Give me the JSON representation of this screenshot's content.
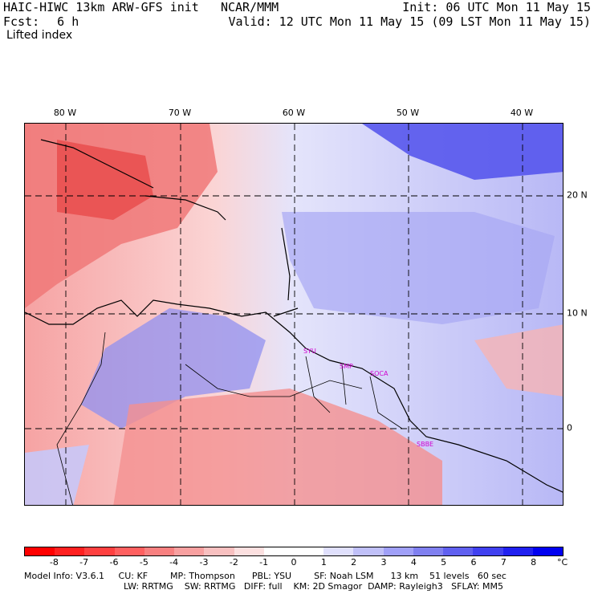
{
  "header": {
    "title": "HAIC-HIWC 13km ARW-GFS init",
    "center": "NCAR/MMM",
    "init": "Init: 06 UTC Mon 11 May 15",
    "fcst_label": "Fcst:",
    "fcst_value": "6 h",
    "valid": "Valid: 12 UTC Mon 11 May 15 (09 LST Mon 11 May 15)",
    "field": "Lifted index"
  },
  "map": {
    "lon_labels": [
      "80 W",
      "70 W",
      "60 W",
      "50 W",
      "40 W"
    ],
    "lat_labels": [
      "20 N",
      "10 N",
      "0"
    ],
    "stations": [
      "SYU",
      "SMP",
      "SOCA",
      "SBBE"
    ]
  },
  "colorbar": {
    "labels": [
      "-8",
      "-7",
      "-6",
      "-5",
      "-4",
      "-3",
      "-2",
      "-1",
      "0",
      "1",
      "2",
      "3",
      "4",
      "5",
      "6",
      "7",
      "8"
    ],
    "unit": "°C",
    "colors": [
      "#ff0000",
      "#ff2020",
      "#ff4040",
      "#ff6060",
      "#f88080",
      "#f8a0a0",
      "#f8c0c0",
      "#fce0e0",
      "#ffffff",
      "#ffffff",
      "#e0e0fc",
      "#c0c0f8",
      "#a0a0f8",
      "#8080f0",
      "#6060f0",
      "#4040f0",
      "#2020f0",
      "#0000f0"
    ]
  },
  "footer": {
    "line1": "Model Info: V3.6.1     CU: KF        MP: Thompson      PBL: YSU        SF: Noah LSM      13 km    51 levels   60 sec",
    "line2": "LW: RRTMG    SW: RRTMG   DIFF: full    KM: 2D Smagor  DAMP: Rayleigh3   SFLAY: MM5"
  }
}
